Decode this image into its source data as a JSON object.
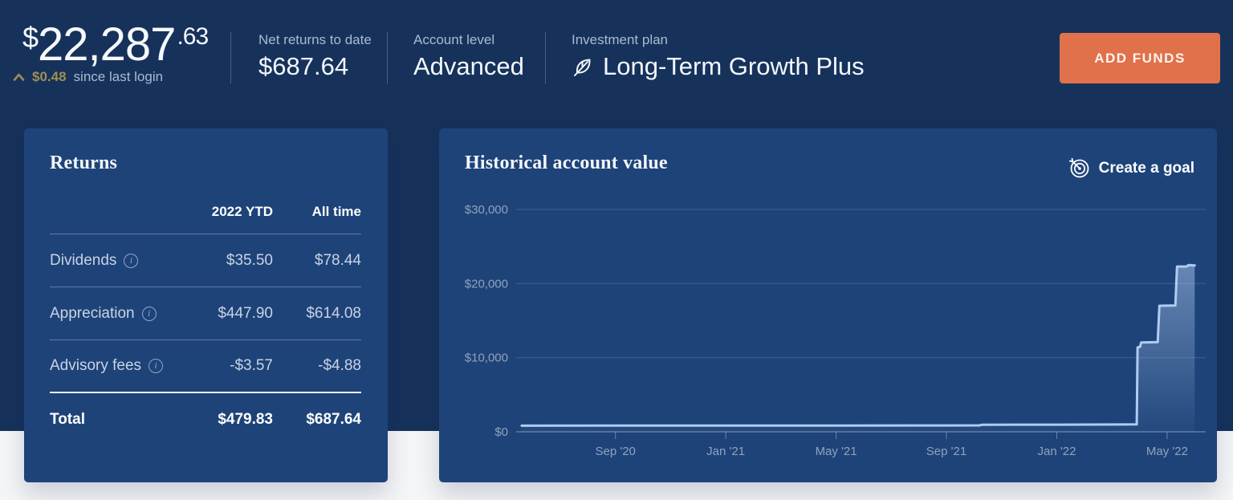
{
  "header": {
    "balance": {
      "currency": "$",
      "amount": "22,287",
      "cents": ".63",
      "change_amount": "$0.48",
      "change_note": "since last login"
    },
    "stats": [
      {
        "label": "Net returns to date",
        "value": "$687.64"
      },
      {
        "label": "Account level",
        "value": "Advanced"
      },
      {
        "label": "Investment plan",
        "value": "Long-Term Growth Plus",
        "icon": "leaf-icon"
      }
    ],
    "add_funds_label": "ADD FUNDS"
  },
  "returns_card": {
    "title": "Returns",
    "columns": [
      "2022 YTD",
      "All time"
    ],
    "rows": [
      {
        "label": "Dividends",
        "ytd": "$35.50",
        "all_time": "$78.44"
      },
      {
        "label": "Appreciation",
        "ytd": "$447.90",
        "all_time": "$614.08"
      },
      {
        "label": "Advisory fees",
        "ytd": "-$3.57",
        "all_time": "-$4.88"
      }
    ],
    "total": {
      "label": "Total",
      "ytd": "$479.83",
      "all_time": "$687.64"
    }
  },
  "chart_card": {
    "title": "Historical account value",
    "create_goal_label": "Create a goal"
  },
  "chart_data": {
    "type": "area",
    "title": "Historical account value",
    "x_unit": "months since May 2020",
    "x_domain": [
      0.4,
      25.4
    ],
    "ylim": [
      0,
      30000
    ],
    "grid": true,
    "legend": false,
    "y_ticks": [
      {
        "v": 0,
        "label": "$0"
      },
      {
        "v": 10000,
        "label": "$10,000"
      },
      {
        "v": 20000,
        "label": "$20,000"
      },
      {
        "v": 30000,
        "label": "$30,000"
      }
    ],
    "x_ticks": [
      {
        "m": 4,
        "label": "Sep '20"
      },
      {
        "m": 8,
        "label": "Jan '21"
      },
      {
        "m": 12,
        "label": "May '21"
      },
      {
        "m": 16,
        "label": "Sep '21"
      },
      {
        "m": 20,
        "label": "Jan '22"
      },
      {
        "m": 24,
        "label": "May '22"
      }
    ],
    "series": [
      {
        "name": "Account value",
        "points": [
          [
            0.6,
            820
          ],
          [
            4,
            830
          ],
          [
            8,
            840
          ],
          [
            12,
            850
          ],
          [
            16,
            860
          ],
          [
            17.2,
            870
          ],
          [
            17.3,
            950
          ],
          [
            20,
            960
          ],
          [
            22.9,
            1000
          ],
          [
            22.93,
            11400
          ],
          [
            23.02,
            11450
          ],
          [
            23.06,
            12050
          ],
          [
            23.66,
            12100
          ],
          [
            23.72,
            17000
          ],
          [
            24.3,
            17050
          ],
          [
            24.36,
            22300
          ],
          [
            24.7,
            22300
          ],
          [
            24.78,
            22500
          ],
          [
            25.0,
            22450
          ]
        ]
      }
    ],
    "line_color": "#AFCCF1",
    "fill_color": "#AFCCF1"
  },
  "colors": {
    "page_navy": "#16325B",
    "card_blue": "#1E4379",
    "accent_orange": "#E0714B",
    "gold": "#9D8E53",
    "chart_line": "#AFCCF1",
    "bottom_background": "#F4F5F7"
  }
}
